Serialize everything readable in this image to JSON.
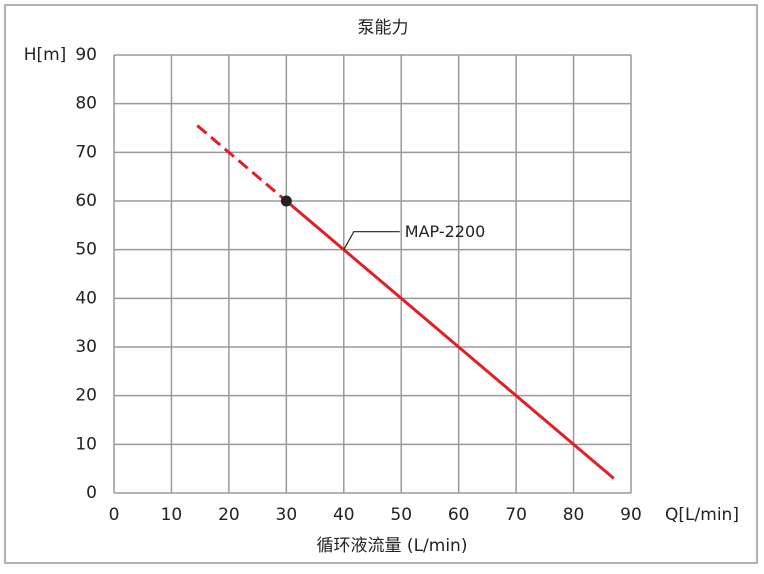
{
  "chart_data": {
    "type": "line",
    "title": "泵能力",
    "ylabel": "H[m]",
    "x_unit_label": "Q[L/min]",
    "xlabel": "循环液流量 (L/min)",
    "xlim": [
      0,
      90
    ],
    "xticks": [
      0,
      10,
      20,
      30,
      40,
      50,
      60,
      70,
      80,
      90
    ],
    "ylim": [
      0,
      90
    ],
    "yticks": [
      0,
      10,
      20,
      30,
      40,
      50,
      60,
      70,
      80,
      90
    ],
    "grid": true,
    "series": [
      {
        "name": "MAP-2200",
        "color": "#e31e24",
        "x": [
          14.5,
          30,
          87
        ],
        "values": [
          75.5,
          60,
          3
        ],
        "segment_styles": [
          "dashed",
          "solid"
        ],
        "markers": [
          false,
          true,
          false
        ],
        "label_at": {
          "x": 40,
          "y": 50
        }
      }
    ]
  }
}
